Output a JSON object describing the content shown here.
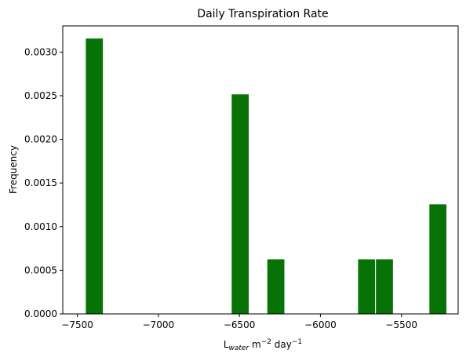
{
  "chart_data": {
    "type": "bar",
    "title": "Daily Transpiration Rate",
    "xlabel_parts": {
      "base": "L",
      "sub": "water",
      "mid": " m",
      "sup1": "−2",
      "end": " day",
      "sup2": "−1"
    },
    "ylabel": "Frequency",
    "xlim": [
      -7590,
      -5150
    ],
    "ylim": [
      0,
      0.0033
    ],
    "x_ticks": [
      -7500,
      -7000,
      -6500,
      -6000,
      -5500
    ],
    "x_tick_labels": [
      "−7500",
      "−7000",
      "−6500",
      "−6000",
      "−5500"
    ],
    "y_ticks": [
      0,
      0.0005,
      0.001,
      0.0015,
      0.002,
      0.0025,
      0.003
    ],
    "y_tick_labels": [
      "0.0000",
      "0.0005",
      "0.0010",
      "0.0015",
      "0.0020",
      "0.0025",
      "0.0030"
    ],
    "bin_width": 110,
    "bars": [
      {
        "x_start": -7450,
        "value": 0.00316
      },
      {
        "x_start": -6550,
        "value": 0.00252
      },
      {
        "x_start": -6330,
        "value": 0.00063
      },
      {
        "x_start": -5770,
        "value": 0.00063
      },
      {
        "x_start": -5660,
        "value": 0.00063
      },
      {
        "x_start": -5330,
        "value": 0.00126
      }
    ],
    "bar_color": "#077307",
    "bar_edge_color": "#ffffff",
    "grid": false,
    "legend": "none"
  }
}
